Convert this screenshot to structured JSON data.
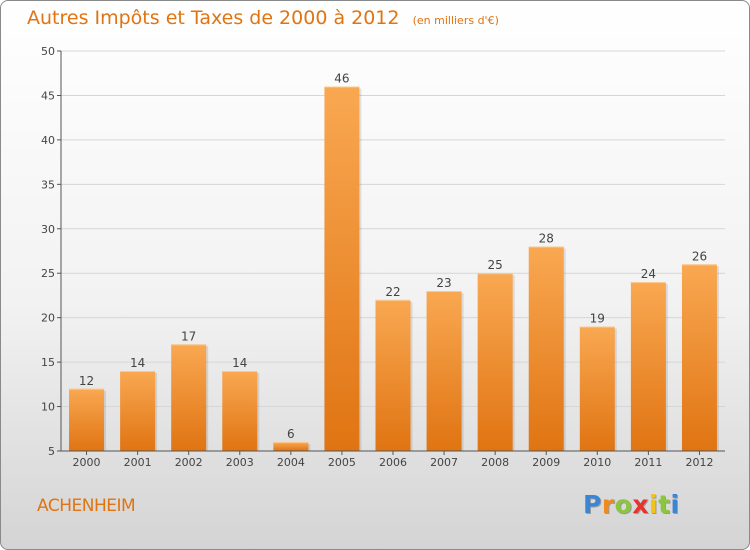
{
  "chart_data": {
    "type": "bar",
    "title": "Autres Impôts et Taxes de 2000 à 2012",
    "subtitle": "(en milliers d'€)",
    "categories": [
      "2000",
      "2001",
      "2002",
      "2003",
      "2004",
      "2005",
      "2006",
      "2007",
      "2008",
      "2009",
      "2010",
      "2011",
      "2012"
    ],
    "values": [
      12,
      14,
      17,
      14,
      6,
      46,
      22,
      23,
      25,
      28,
      19,
      24,
      26
    ],
    "ylim": [
      5,
      50
    ],
    "yticks": [
      5,
      10,
      15,
      20,
      25,
      30,
      35,
      40,
      45,
      50
    ],
    "grid": true,
    "bar_color_top": "#f9a852",
    "bar_color_bottom": "#e07412",
    "accent_color": "#e07412"
  },
  "commune": "ACHENHEIM",
  "brand": {
    "letters": [
      "P",
      "r",
      "o",
      "x",
      "i",
      "t",
      "i"
    ],
    "colors": [
      "#3a86d6",
      "#f08a1e",
      "#8cc63e",
      "#e8322c",
      "#f0c419",
      "#8cc63e",
      "#3a86d6"
    ]
  }
}
